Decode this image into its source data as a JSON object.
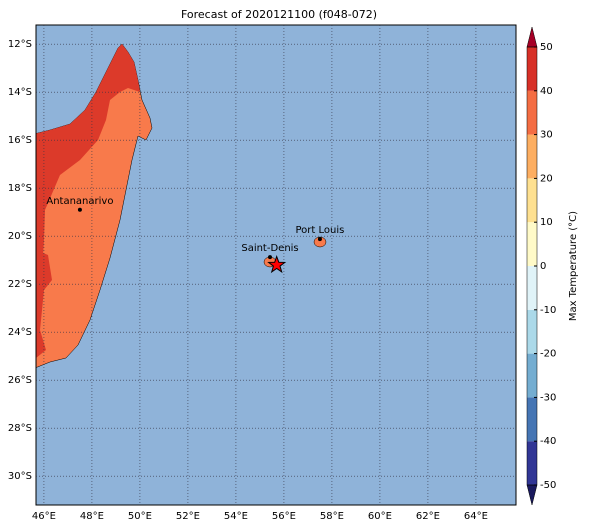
{
  "chart_data": {
    "type": "map",
    "title": "Forecast of 2020121100 (f048-072)",
    "xlim": [
      45.67,
      65.67
    ],
    "ylim": [
      -31.2,
      -11.2
    ],
    "xticks": [
      {
        "value": 46,
        "label": "46°E"
      },
      {
        "value": 48,
        "label": "48°E"
      },
      {
        "value": 50,
        "label": "50°E"
      },
      {
        "value": 52,
        "label": "52°E"
      },
      {
        "value": 54,
        "label": "54°E"
      },
      {
        "value": 56,
        "label": "56°E"
      },
      {
        "value": 58,
        "label": "58°E"
      },
      {
        "value": 60,
        "label": "60°E"
      },
      {
        "value": 62,
        "label": "62°E"
      },
      {
        "value": 64,
        "label": "64°E"
      }
    ],
    "yticks": [
      {
        "value": -12,
        "label": "12°S"
      },
      {
        "value": -14,
        "label": "14°S"
      },
      {
        "value": -16,
        "label": "16°S"
      },
      {
        "value": -18,
        "label": "18°S"
      },
      {
        "value": -20,
        "label": "20°S"
      },
      {
        "value": -22,
        "label": "22°S"
      },
      {
        "value": -24,
        "label": "24°S"
      },
      {
        "value": -26,
        "label": "26°S"
      },
      {
        "value": -28,
        "label": "28°S"
      },
      {
        "value": -30,
        "label": "30°S"
      }
    ],
    "grid": true,
    "ocean_color": "#8fb3d9",
    "cities": [
      {
        "name": "Antananarivo",
        "lon": 47.5,
        "lat": -18.9
      },
      {
        "name": "Saint-Denis",
        "lon": 55.42,
        "lat": -20.87
      },
      {
        "name": "Port Louis",
        "lon": 57.5,
        "lat": -20.12
      }
    ],
    "star": {
      "lon": 55.7,
      "lat": -21.2,
      "color": "#ff0000"
    },
    "colorbar": {
      "label": "Max Temperature (°C)",
      "levels": [
        -50,
        -40,
        -30,
        -20,
        -10,
        0,
        10,
        20,
        30,
        40,
        50
      ],
      "colors": [
        "#313695",
        "#4575b4",
        "#74add1",
        "#abd9e9",
        "#e0f3f8",
        "#fffac8",
        "#fee090",
        "#fdae61",
        "#f46d43",
        "#d73027"
      ],
      "under": "#1a1a5e",
      "over": "#a50026"
    }
  }
}
